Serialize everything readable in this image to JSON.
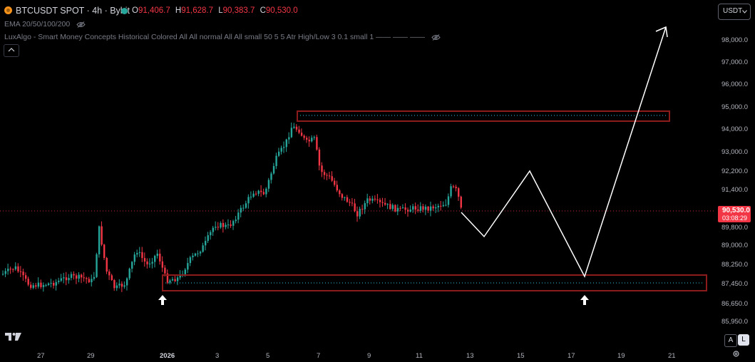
{
  "header": {
    "symbol_line": "BTCUSDT SPOT · 4h · Bybit",
    "ohlc": {
      "o_key": "O",
      "o_val": "91,406.7",
      "h_key": "H",
      "h_val": "91,628.7",
      "l_key": "L",
      "l_val": "90,383.7",
      "c_key": "C",
      "c_val": "90,530.0"
    },
    "indicator_1": "EMA 20/50/100/200",
    "indicator_2": "LuxAlgo - Smart Money Concepts Historical Colored All All normal All All small 50 5 5 Atr High/Low 3 0.1 small 1 —— —— ——",
    "currency": "USDT"
  },
  "price_axis": {
    "labels": [
      "98,000.0",
      "97,000.0",
      "96,000.0",
      "95,000.0",
      "94,000.0",
      "93,000.0",
      "92,200.0",
      "91,400.0",
      "89,800.0",
      "89,000.0",
      "88,250.0",
      "87,450.0",
      "86,650.0",
      "85,950.0"
    ],
    "current_price": "90,530.0",
    "countdown": "03:08:29"
  },
  "time_axis": {
    "labels": [
      "27",
      "29",
      "2026",
      "3",
      "5",
      "7",
      "9",
      "11",
      "13",
      "15",
      "17",
      "19",
      "21"
    ]
  },
  "buttons": {
    "auto": "A",
    "log": "L"
  },
  "colors": {
    "up": "#26a69a",
    "down": "#f23645",
    "zone_border": "#8c1b1b",
    "dotted_level": "#26c6da",
    "projection": "#ffffff"
  }
}
